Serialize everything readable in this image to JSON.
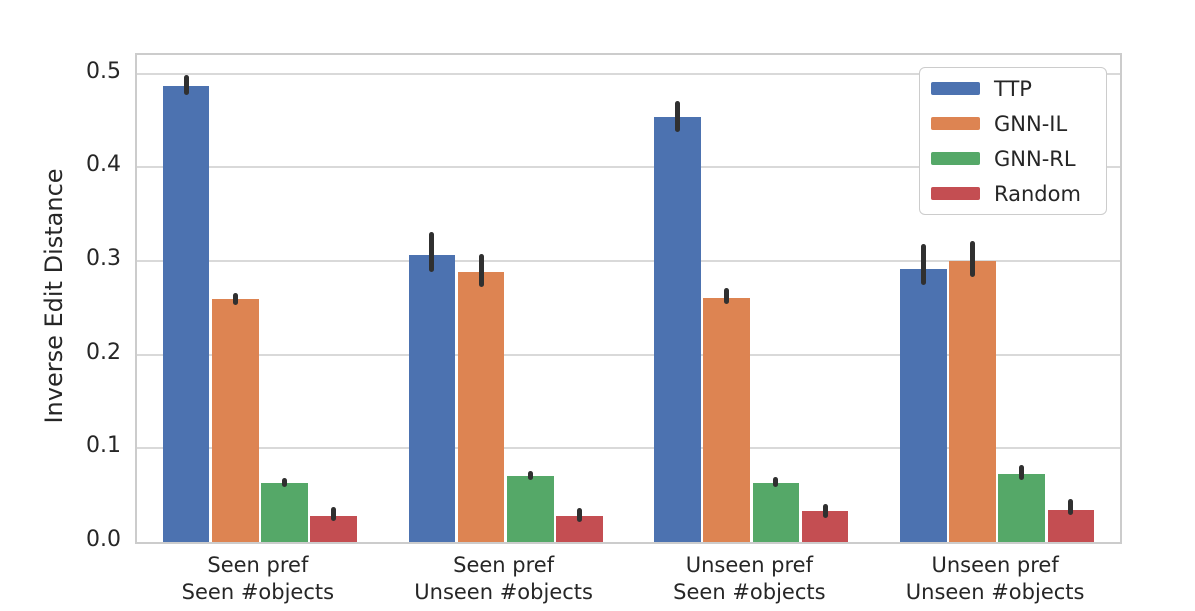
{
  "chart_data": {
    "type": "bar",
    "title": "",
    "xlabel": "",
    "ylabel": "Inverse Edit Distance",
    "ylim": [
      0,
      0.52
    ],
    "grid": true,
    "legend_position": "upper-right",
    "yticks": [
      0,
      0.1,
      0.2,
      0.3,
      0.4,
      0.5
    ],
    "yticklabels": [
      "0.0",
      "0.1",
      "0.2",
      "0.3",
      "0.4",
      "0.5"
    ],
    "categories": [
      "Seen pref\nSeen #objects",
      "Seen pref\nUnseen #objects",
      "Unseen pref\nSeen #objects",
      "Unseen pref\nUnseen #objects"
    ],
    "series": [
      {
        "name": "TTP",
        "color": "#4c72b0",
        "values": [
          0.487,
          0.306,
          0.454,
          0.291
        ],
        "ci_low": [
          0.477,
          0.288,
          0.438,
          0.274
        ],
        "ci_high": [
          0.499,
          0.331,
          0.471,
          0.318
        ]
      },
      {
        "name": "GNN-IL",
        "color": "#dd8452",
        "values": [
          0.259,
          0.288,
          0.261,
          0.3
        ],
        "ci_low": [
          0.253,
          0.272,
          0.254,
          0.283
        ],
        "ci_high": [
          0.266,
          0.307,
          0.271,
          0.321
        ]
      },
      {
        "name": "GNN-RL",
        "color": "#55a868",
        "values": [
          0.063,
          0.07,
          0.063,
          0.073
        ],
        "ci_low": [
          0.059,
          0.066,
          0.059,
          0.066
        ],
        "ci_high": [
          0.068,
          0.076,
          0.069,
          0.082
        ]
      },
      {
        "name": "Random",
        "color": "#c44e52",
        "values": [
          0.028,
          0.028,
          0.033,
          0.034
        ],
        "ci_low": [
          0.022,
          0.021,
          0.026,
          0.029
        ],
        "ci_high": [
          0.037,
          0.036,
          0.041,
          0.046
        ]
      }
    ],
    "error_bar_color": "#303030"
  },
  "style": {
    "background": "#ffffff",
    "grid_color": "#d9d9d9",
    "spine_color": "#cccccc",
    "text_color": "#262626"
  }
}
